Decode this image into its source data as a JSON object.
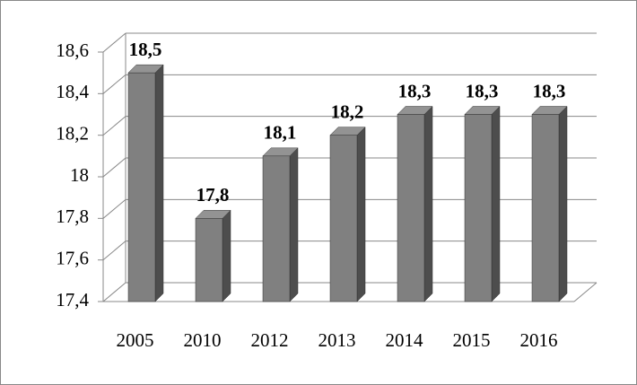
{
  "chart_data": {
    "type": "bar3d",
    "categories": [
      "2005",
      "2010",
      "2012",
      "2013",
      "2014",
      "2015",
      "2016"
    ],
    "values": [
      18.5,
      17.8,
      18.1,
      18.2,
      18.3,
      18.3,
      18.3
    ],
    "value_labels": [
      "18,5",
      "17,8",
      "18,1",
      "18,2",
      "18,3",
      "18,3",
      "18,3"
    ],
    "color": "#808080",
    "ylim": [
      17.4,
      18.6
    ],
    "yticks": [
      {
        "value": 17.4,
        "label": "17,4"
      },
      {
        "value": 17.6,
        "label": "17,6"
      },
      {
        "value": 17.8,
        "label": "17,8"
      },
      18,
      {
        "value": 18.2,
        "label": "18,2"
      },
      {
        "value": 18.4,
        "label": "18,4"
      },
      {
        "value": 18.6,
        "label": "18,6"
      }
    ],
    "grid": true
  }
}
